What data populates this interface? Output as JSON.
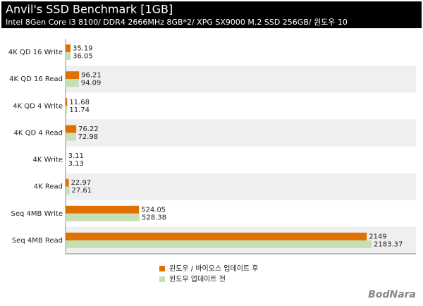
{
  "chart_data": {
    "type": "bar",
    "orientation": "horizontal",
    "title": "Anvil's SSD Benchmark [1GB]",
    "subtitle": "Intel 8Gen Core i3 8100/ DDR4 2666MHz 8GB*2/ XPG SX9000 M.2 SSD 256GB/ 윈도우 10",
    "categories": [
      "4K QD 16 Write",
      "4K QD 16 Read",
      "4K QD 4 Write",
      "4K QD 4 Read",
      "4K Write",
      "4K Read",
      "Seq 4MB Write",
      "Seq 4MB Read"
    ],
    "series": [
      {
        "name": "윈도우 / 바이오스 업데이트 후",
        "color": "#e07000",
        "values": [
          35.19,
          96.21,
          11.68,
          76.22,
          3.11,
          22.97,
          524.05,
          2149
        ]
      },
      {
        "name": "윈도우 업데이트 전",
        "color": "#c6e0b4",
        "values": [
          36.05,
          94.09,
          11.74,
          72.98,
          3.13,
          27.61,
          528.38,
          2183.37
        ]
      }
    ],
    "xlim": [
      0,
      2500
    ],
    "watermark": "BodNara"
  }
}
